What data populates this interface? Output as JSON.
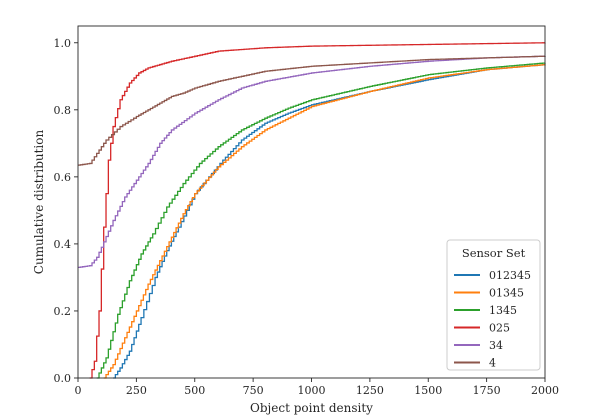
{
  "chart_data": {
    "type": "line",
    "title": "",
    "xlabel": "Object point density",
    "ylabel": "Cumulative distribution",
    "xlim": [
      0,
      2000
    ],
    "ylim": [
      0,
      1.05
    ],
    "xticks": [
      0,
      250,
      500,
      750,
      1000,
      1250,
      1500,
      1750,
      2000
    ],
    "xtick_labels": [
      "0",
      "250",
      "500",
      "750",
      "1000",
      "1250",
      "1500",
      "1750",
      "2000"
    ],
    "yticks": [
      0.0,
      0.2,
      0.4,
      0.6,
      0.8,
      1.0
    ],
    "ytick_labels": [
      "0.0",
      "0.2",
      "0.4",
      "0.6",
      "0.8",
      "1.0"
    ],
    "grid": false,
    "legend": {
      "title": "Sensor Set",
      "position": "lower-right"
    },
    "step": true,
    "series": [
      {
        "name": "012345",
        "color": "#1f77b4",
        "points": [
          [
            150,
            0.0
          ],
          [
            180,
            0.03
          ],
          [
            220,
            0.08
          ],
          [
            270,
            0.18
          ],
          [
            330,
            0.3
          ],
          [
            380,
            0.38
          ],
          [
            430,
            0.45
          ],
          [
            500,
            0.55
          ],
          [
            560,
            0.6
          ],
          [
            620,
            0.65
          ],
          [
            700,
            0.71
          ],
          [
            800,
            0.76
          ],
          [
            900,
            0.79
          ],
          [
            1000,
            0.815
          ],
          [
            1250,
            0.855
          ],
          [
            1500,
            0.89
          ],
          [
            1750,
            0.92
          ],
          [
            2000,
            0.935
          ]
        ]
      },
      {
        "name": "01345",
        "color": "#ff7f0e",
        "points": [
          [
            110,
            0.0
          ],
          [
            150,
            0.04
          ],
          [
            200,
            0.12
          ],
          [
            250,
            0.2
          ],
          [
            300,
            0.28
          ],
          [
            350,
            0.35
          ],
          [
            400,
            0.42
          ],
          [
            450,
            0.49
          ],
          [
            500,
            0.55
          ],
          [
            550,
            0.59
          ],
          [
            600,
            0.63
          ],
          [
            700,
            0.69
          ],
          [
            800,
            0.74
          ],
          [
            900,
            0.775
          ],
          [
            1000,
            0.81
          ],
          [
            1250,
            0.855
          ],
          [
            1500,
            0.895
          ],
          [
            1750,
            0.92
          ],
          [
            2000,
            0.935
          ]
        ]
      },
      {
        "name": "1345",
        "color": "#2ca02c",
        "points": [
          [
            80,
            0.0
          ],
          [
            120,
            0.06
          ],
          [
            170,
            0.19
          ],
          [
            220,
            0.29
          ],
          [
            270,
            0.37
          ],
          [
            320,
            0.43
          ],
          [
            380,
            0.51
          ],
          [
            450,
            0.58
          ],
          [
            520,
            0.64
          ],
          [
            600,
            0.69
          ],
          [
            700,
            0.74
          ],
          [
            800,
            0.775
          ],
          [
            900,
            0.805
          ],
          [
            1000,
            0.83
          ],
          [
            1250,
            0.87
          ],
          [
            1500,
            0.905
          ],
          [
            1750,
            0.925
          ],
          [
            2000,
            0.94
          ]
        ]
      },
      {
        "name": "025",
        "color": "#d62728",
        "points": [
          [
            50,
            0.0
          ],
          [
            70,
            0.05
          ],
          [
            90,
            0.2
          ],
          [
            110,
            0.45
          ],
          [
            130,
            0.65
          ],
          [
            150,
            0.75
          ],
          [
            180,
            0.83
          ],
          [
            220,
            0.88
          ],
          [
            260,
            0.91
          ],
          [
            300,
            0.925
          ],
          [
            350,
            0.935
          ],
          [
            400,
            0.945
          ],
          [
            500,
            0.96
          ],
          [
            600,
            0.975
          ],
          [
            800,
            0.985
          ],
          [
            1000,
            0.99
          ],
          [
            1500,
            0.995
          ],
          [
            2000,
            1.0
          ]
        ]
      },
      {
        "name": "34",
        "color": "#9467bd",
        "points": [
          [
            0,
            0.33
          ],
          [
            50,
            0.335
          ],
          [
            80,
            0.36
          ],
          [
            100,
            0.39
          ],
          [
            150,
            0.47
          ],
          [
            200,
            0.54
          ],
          [
            250,
            0.59
          ],
          [
            300,
            0.64
          ],
          [
            350,
            0.7
          ],
          [
            400,
            0.74
          ],
          [
            500,
            0.79
          ],
          [
            600,
            0.83
          ],
          [
            700,
            0.865
          ],
          [
            800,
            0.885
          ],
          [
            1000,
            0.91
          ],
          [
            1250,
            0.93
          ],
          [
            1500,
            0.945
          ],
          [
            1750,
            0.955
          ],
          [
            2000,
            0.96
          ]
        ]
      },
      {
        "name": "4",
        "color": "#8c564b",
        "points": [
          [
            0,
            0.635
          ],
          [
            50,
            0.64
          ],
          [
            80,
            0.67
          ],
          [
            120,
            0.71
          ],
          [
            180,
            0.75
          ],
          [
            250,
            0.78
          ],
          [
            300,
            0.8
          ],
          [
            350,
            0.82
          ],
          [
            400,
            0.84
          ],
          [
            450,
            0.85
          ],
          [
            500,
            0.865
          ],
          [
            600,
            0.885
          ],
          [
            700,
            0.9
          ],
          [
            800,
            0.915
          ],
          [
            1000,
            0.93
          ],
          [
            1250,
            0.94
          ],
          [
            1500,
            0.95
          ],
          [
            1750,
            0.955
          ],
          [
            2000,
            0.96
          ]
        ]
      }
    ]
  }
}
